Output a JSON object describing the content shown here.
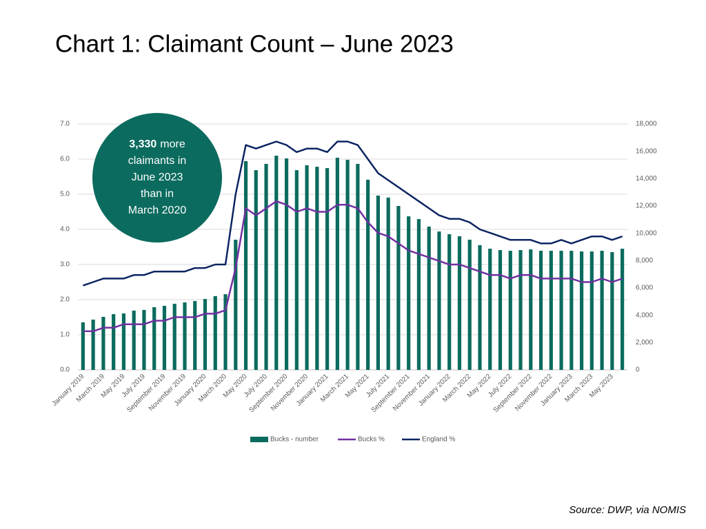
{
  "chart_data": {
    "type": "bar",
    "title": "Chart 1: Claimant Count – June 2023",
    "source": "Source: DWP, via NOMIS",
    "annotation": {
      "highlight": "3,330",
      "lines": [
        "more",
        "claimants in",
        "June 2023",
        "than in",
        "March 2020"
      ]
    },
    "categories": [
      "January 2019",
      null,
      "March 2019",
      null,
      "May 2019",
      null,
      "July 2019",
      null,
      "September 2019",
      null,
      "November 2019",
      null,
      "January 2020",
      null,
      "March 2020",
      null,
      "May 2020",
      null,
      "July 2020",
      null,
      "September 2020",
      null,
      "November 2020",
      null,
      "January 2021",
      null,
      "March 2021",
      null,
      "May 2021",
      null,
      "July 2021",
      null,
      "September 2021",
      null,
      "November 2021",
      null,
      "January 2022",
      null,
      "March 2022",
      null,
      "May 2022",
      null,
      "July 2022",
      null,
      "September 2022",
      null,
      "November 2022",
      null,
      "January 2023",
      null,
      "March 2023",
      null,
      "May 2023",
      null
    ],
    "series": [
      {
        "name": "Bucks - number",
        "type": "bar",
        "axis": "y2",
        "color": "#0b6b5e",
        "values": [
          3480,
          3680,
          3880,
          4080,
          4130,
          4340,
          4390,
          4590,
          4690,
          4840,
          4940,
          5040,
          5190,
          5400,
          5540,
          9530,
          15280,
          14620,
          15080,
          15680,
          15480,
          14620,
          14980,
          14870,
          14770,
          15530,
          15380,
          15080,
          13920,
          12760,
          12610,
          12000,
          11240,
          11040,
          10490,
          10130,
          9930,
          9780,
          9530,
          9130,
          8870,
          8770,
          8720,
          8770,
          8820,
          8720,
          8720,
          8720,
          8720,
          8670,
          8670,
          8720,
          8620,
          8870
        ]
      },
      {
        "name": "Bucks %",
        "type": "line",
        "color": "#7030a0",
        "values": [
          1.1,
          1.1,
          1.2,
          1.2,
          1.3,
          1.3,
          1.3,
          1.4,
          1.4,
          1.5,
          1.5,
          1.5,
          1.6,
          1.6,
          1.7,
          2.9,
          4.6,
          4.4,
          4.6,
          4.8,
          4.7,
          4.5,
          4.6,
          4.5,
          4.5,
          4.7,
          4.7,
          4.6,
          4.2,
          3.9,
          3.8,
          3.6,
          3.4,
          3.3,
          3.2,
          3.1,
          3.0,
          3.0,
          2.9,
          2.8,
          2.7,
          2.7,
          2.6,
          2.7,
          2.7,
          2.6,
          2.6,
          2.6,
          2.6,
          2.5,
          2.5,
          2.6,
          2.5,
          2.6
        ]
      },
      {
        "name": "England %",
        "type": "line",
        "color": "#0c2461",
        "values": [
          2.4,
          2.5,
          2.6,
          2.6,
          2.6,
          2.7,
          2.7,
          2.8,
          2.8,
          2.8,
          2.8,
          2.9,
          2.9,
          3.0,
          3.0,
          5.0,
          6.4,
          6.3,
          6.4,
          6.5,
          6.4,
          6.2,
          6.3,
          6.3,
          6.2,
          6.5,
          6.5,
          6.4,
          6.0,
          5.6,
          5.4,
          5.2,
          5.0,
          4.8,
          4.6,
          4.4,
          4.3,
          4.3,
          4.2,
          4.0,
          3.9,
          3.8,
          3.7,
          3.7,
          3.7,
          3.6,
          3.6,
          3.7,
          3.6,
          3.7,
          3.8,
          3.8,
          3.7,
          3.8
        ]
      }
    ],
    "ylim": [
      0,
      7
    ],
    "yticks": [
      {
        "value": 0,
        "label": "0.0"
      },
      {
        "value": 1,
        "label": "1.0"
      },
      {
        "value": 2,
        "label": "2.0"
      },
      {
        "value": 3,
        "label": "3.0"
      },
      {
        "value": 4,
        "label": "4.0"
      },
      {
        "value": 5,
        "label": "5.0"
      },
      {
        "value": 6,
        "label": "6.0"
      },
      {
        "value": 7,
        "label": "7.0"
      }
    ],
    "y2lim": [
      0,
      18000
    ],
    "y2ticks": [
      0,
      {
        "value": 2000,
        "label": "2,000"
      },
      {
        "value": 4000,
        "label": "4,000"
      },
      {
        "value": 6000,
        "label": "6,000"
      },
      {
        "value": 8000,
        "label": "8,000"
      },
      {
        "value": 10000,
        "label": "10,000"
      },
      {
        "value": 12000,
        "label": "12,000"
      },
      {
        "value": 14000,
        "label": "14,000"
      },
      {
        "value": 16000,
        "label": "16,000"
      },
      {
        "value": 18000,
        "label": "18,000"
      }
    ],
    "grid": true,
    "legend": "bottom"
  }
}
